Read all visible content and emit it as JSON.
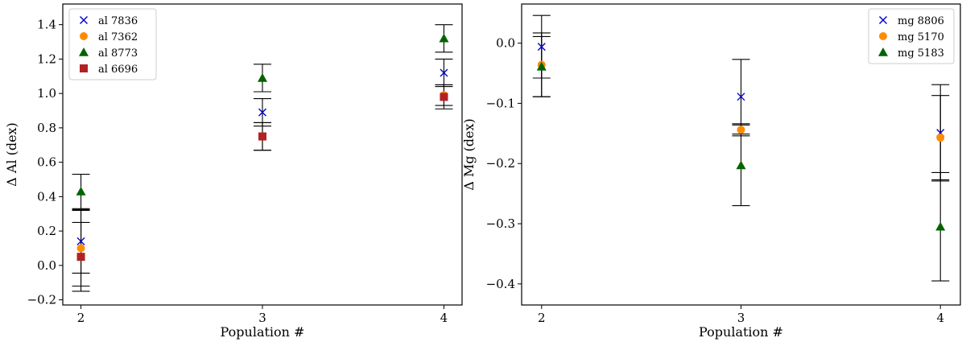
{
  "chart_data": [
    {
      "type": "scatter",
      "xlabel": "Population #",
      "ylabel": "Δ Al (dex)",
      "xlim": [
        1.9,
        4.1
      ],
      "ylim": [
        -0.23,
        1.52
      ],
      "xticks": [
        2,
        3,
        4
      ],
      "yticks": [
        -0.2,
        0.0,
        0.2,
        0.4,
        0.6,
        0.8,
        1.0,
        1.2,
        1.4
      ],
      "ytick_labels": [
        "−0.2",
        "0.0",
        "0.2",
        "0.4",
        "0.6",
        "0.8",
        "1.0",
        "1.2",
        "1.4"
      ],
      "grid": false,
      "legend": "top-left",
      "series": [
        {
          "name": "al 7836",
          "marker": "x",
          "color": "#0000cc",
          "points": [
            {
              "x": 2,
              "y": 0.14,
              "err": 0.185
            },
            {
              "x": 3,
              "y": 0.89,
              "err": 0.08
            },
            {
              "x": 4,
              "y": 1.12,
              "err": 0.08
            }
          ]
        },
        {
          "name": "al 7362",
          "marker": "circle",
          "color": "#ff8c00",
          "points": [
            {
              "x": 2,
              "y": 0.1,
              "err": 0.22
            },
            {
              "x": 3,
              "y": 0.75,
              "err": 0.08
            },
            {
              "x": 4,
              "y": 0.99,
              "err": 0.06
            }
          ]
        },
        {
          "name": "al 8773",
          "marker": "triangle",
          "color": "#006400",
          "points": [
            {
              "x": 2,
              "y": 0.43,
              "err": 0.1
            },
            {
              "x": 3,
              "y": 1.09,
              "err": 0.08
            },
            {
              "x": 4,
              "y": 1.32,
              "err": 0.08
            }
          ]
        },
        {
          "name": "al 6696",
          "marker": "square",
          "color": "#b22222",
          "points": [
            {
              "x": 2,
              "y": 0.05,
              "err": 0.2
            },
            {
              "x": 3,
              "y": 0.75,
              "err": 0.08
            },
            {
              "x": 4,
              "y": 0.98,
              "err": 0.07
            }
          ]
        }
      ]
    },
    {
      "type": "scatter",
      "xlabel": "Population #",
      "ylabel": "Δ Mg (dex)",
      "xlim": [
        1.9,
        4.1
      ],
      "ylim": [
        -0.435,
        0.065
      ],
      "xticks": [
        2,
        3,
        4
      ],
      "yticks": [
        -0.4,
        -0.3,
        -0.2,
        -0.1,
        0.0
      ],
      "ytick_labels": [
        "−0.4",
        "−0.3",
        "−0.2",
        "−0.1",
        "0.0"
      ],
      "grid": false,
      "legend": "top-right",
      "series": [
        {
          "name": "mg 8806",
          "marker": "x",
          "color": "#0000cc",
          "points": [
            {
              "x": 2,
              "y": -0.006,
              "err": 0.052
            },
            {
              "x": 3,
              "y": -0.089,
              "err": 0.062
            },
            {
              "x": 4,
              "y": -0.149,
              "err": 0.08
            }
          ]
        },
        {
          "name": "mg 5170",
          "marker": "circle",
          "color": "#ff8c00",
          "points": [
            {
              "x": 2,
              "y": -0.036,
              "err": 0.053
            },
            {
              "x": 3,
              "y": -0.144,
              "err": 0.01
            },
            {
              "x": 4,
              "y": -0.157,
              "err": 0.07
            }
          ]
        },
        {
          "name": "mg 5183",
          "marker": "triangle",
          "color": "#006400",
          "points": [
            {
              "x": 2,
              "y": -0.039,
              "err": 0.05
            },
            {
              "x": 3,
              "y": -0.203,
              "err": 0.067
            },
            {
              "x": 4,
              "y": -0.305,
              "err": 0.09
            }
          ]
        }
      ]
    }
  ]
}
